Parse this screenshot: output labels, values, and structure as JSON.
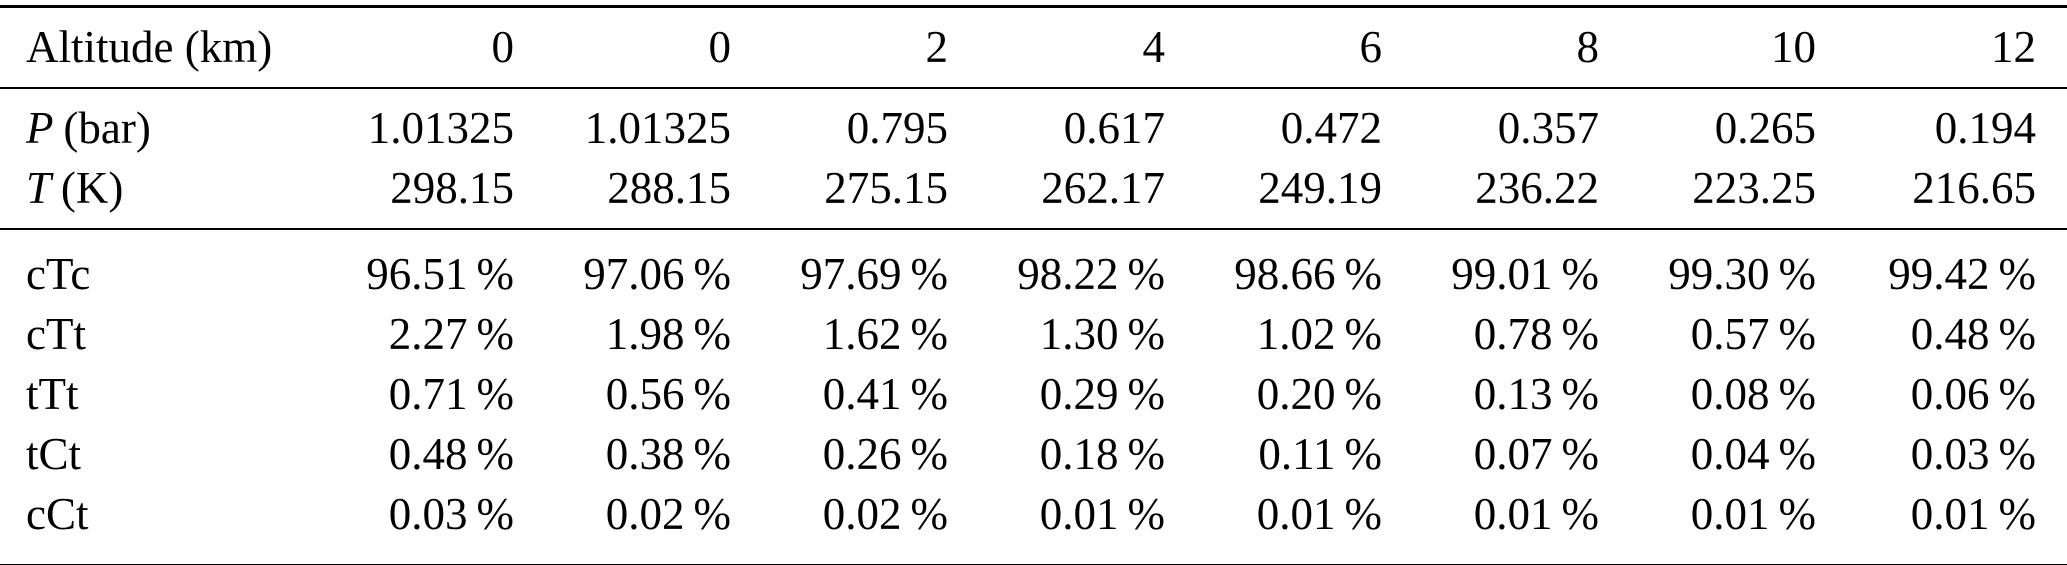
{
  "table": {
    "description": "Atmospheric pressure, temperature and conformer population percentages as a function of altitude",
    "colors": {
      "background": "#ffffff",
      "text": "#000000",
      "rule": "#000000"
    },
    "header": {
      "label": "Altitude (km)",
      "values": [
        "0",
        "0",
        "2",
        "4",
        "6",
        "8",
        "10",
        "12"
      ]
    },
    "conditions": [
      {
        "symbol": "P",
        "unit": "(bar)",
        "values": [
          "1.01325",
          "1.01325",
          "0.795",
          "0.617",
          "0.472",
          "0.357",
          "0.265",
          "0.194"
        ]
      },
      {
        "symbol": "T",
        "unit": "(K)",
        "values": [
          "298.15",
          "288.15",
          "275.15",
          "262.17",
          "249.19",
          "236.22",
          "223.25",
          "216.65"
        ]
      }
    ],
    "fractions": [
      {
        "label": "cTc",
        "values": [
          "96.51 %",
          "97.06 %",
          "97.69 %",
          "98.22 %",
          "98.66 %",
          "99.01 %",
          "99.30 %",
          "99.42 %"
        ]
      },
      {
        "label": "cTt",
        "values": [
          "2.27 %",
          "1.98 %",
          "1.62 %",
          "1.30 %",
          "1.02 %",
          "0.78 %",
          "0.57 %",
          "0.48 %"
        ]
      },
      {
        "label": "tTt",
        "values": [
          "0.71 %",
          "0.56 %",
          "0.41 %",
          "0.29 %",
          "0.20 %",
          "0.13 %",
          "0.08 %",
          "0.06 %"
        ]
      },
      {
        "label": "tCt",
        "values": [
          "0.48 %",
          "0.38 %",
          "0.26 %",
          "0.18 %",
          "0.11 %",
          "0.07 %",
          "0.04 %",
          "0.03 %"
        ]
      },
      {
        "label": "cCt",
        "values": [
          "0.03 %",
          "0.02 %",
          "0.02 %",
          "0.01 %",
          "0.01 %",
          "0.01 %",
          "0.01 %",
          "0.01 %"
        ]
      }
    ]
  }
}
